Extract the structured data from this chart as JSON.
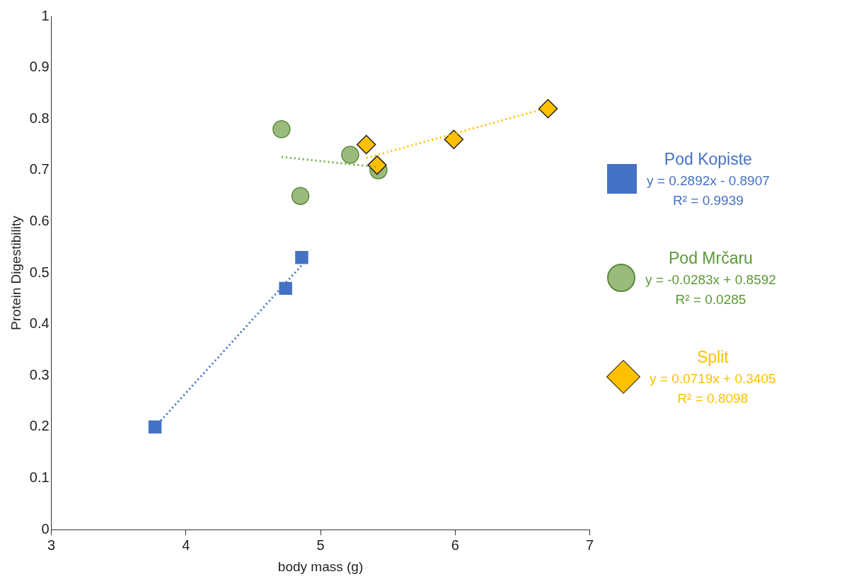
{
  "chart_data": {
    "type": "scatter",
    "xlabel": "body mass (g)",
    "ylabel": "Protein Digestibility",
    "xlim": [
      3,
      7
    ],
    "xticks": [
      3,
      4,
      5,
      6,
      7
    ],
    "ylim": [
      0,
      1
    ],
    "yticks": [
      0,
      0.1,
      0.2,
      0.3,
      0.4,
      0.5,
      0.6,
      0.7,
      0.8,
      0.9,
      1
    ],
    "grid": false,
    "legend": "right",
    "annotations": [
      "y = 0.2892x - 0.8907",
      "R² = 0.9939",
      "y = -0.0283x + 0.8592",
      "R² = 0.0285",
      "y = 0.0719x + 0.3405",
      "R² = 0.8098"
    ],
    "series": [
      {
        "name": "Pod Kopiste",
        "marker": "square",
        "color": "#4472c4",
        "x": [
          3.77,
          4.74,
          4.86
        ],
        "values": [
          0.2,
          0.47,
          0.53
        ]
      },
      {
        "name": "Pod Mrčaru",
        "marker": "circle",
        "color": "#9bbb7e",
        "x": [
          4.71,
          4.85,
          5.22,
          5.43
        ],
        "values": [
          0.78,
          0.65,
          0.73,
          0.7
        ]
      },
      {
        "name": "Split",
        "marker": "diamond",
        "color": "#ffc000",
        "x": [
          5.34,
          5.42,
          5.99,
          6.69
        ],
        "values": [
          0.75,
          0.71,
          0.76,
          0.82
        ]
      },
      {
        "type": "line",
        "marker": "none",
        "line_style": "dotted",
        "color": "#4472c4",
        "x": [
          3.77,
          4.86
        ],
        "values": [
          0.2,
          0.515
        ]
      },
      {
        "type": "line",
        "marker": "none",
        "line_style": "dotted",
        "color": "#70ad47",
        "x": [
          4.71,
          5.43
        ],
        "values": [
          0.726,
          0.706
        ]
      },
      {
        "type": "line",
        "marker": "none",
        "line_style": "dotted",
        "color": "#ffc000",
        "x": [
          5.34,
          6.69
        ],
        "values": [
          0.724,
          0.822
        ]
      }
    ]
  }
}
